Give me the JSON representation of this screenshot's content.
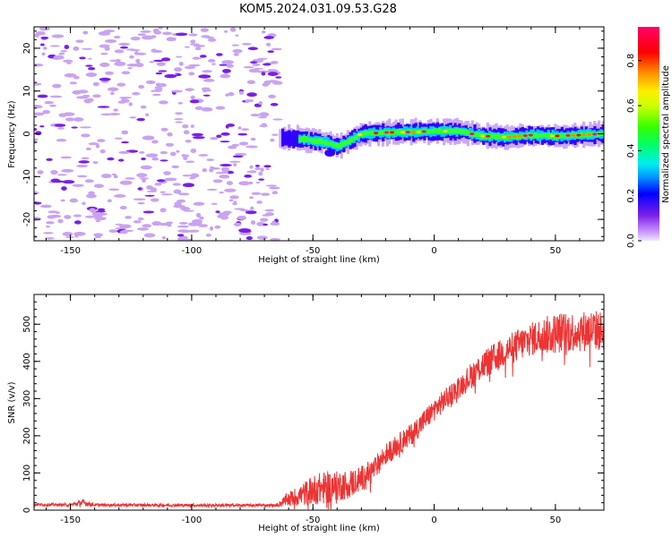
{
  "title": "KOM5.2024.031.09.53.G28",
  "colors": {
    "snr_line": "#ee3333",
    "speckle_light": "#c9a3f0",
    "speckle_dark": "#7a1fe8"
  },
  "chart_data": [
    {
      "type": "heatmap",
      "title": "KOM5.2024.031.09.53.G28",
      "xlabel": "Height of straight line (km)",
      "ylabel": "Frequency (Hz)",
      "xlim": [
        -165,
        70
      ],
      "ylim": [
        -25,
        25
      ],
      "xticks": [
        -150,
        -100,
        -50,
        0,
        50
      ],
      "yticks": [
        -20,
        -10,
        0,
        10,
        20
      ],
      "colorbar": {
        "label": "Normalized spectral amplitude",
        "range": [
          0,
          0.95
        ],
        "ticks": [
          0.0,
          0.2,
          0.4,
          0.6,
          0.8
        ],
        "colormap": "gist_rainbow_r"
      },
      "noise_region_x": [
        -165,
        -64
      ],
      "signal_trace": {
        "x": [
          -64,
          -55,
          -45,
          -40,
          -35,
          -30,
          -20,
          -10,
          0,
          10,
          20,
          30,
          40,
          50,
          60,
          70
        ],
        "freq": [
          -1,
          -1.2,
          -2,
          -3,
          -1.5,
          0,
          0.3,
          0.4,
          0.6,
          0.6,
          -0.5,
          -0.8,
          -0.3,
          -0.5,
          -0.3,
          0
        ]
      },
      "grid": false
    },
    {
      "type": "line",
      "xlabel": "Height of straight line (km)",
      "ylabel": "SNR (v/v)",
      "xlim": [
        -165,
        70
      ],
      "ylim": [
        0,
        580
      ],
      "xticks": [
        -150,
        -100,
        -50,
        0,
        50
      ],
      "yticks": [
        0,
        100,
        200,
        300,
        400,
        500
      ],
      "series": [
        {
          "x": [
            -165,
            -150,
            -145,
            -140,
            -100,
            -65,
            -60,
            -55,
            -50,
            -45,
            -40,
            -35,
            -30,
            -25,
            -20,
            -15,
            -10,
            -5,
            0,
            5,
            10,
            15,
            20,
            25,
            30,
            35,
            40,
            45,
            50,
            55,
            60,
            65,
            70
          ],
          "values": [
            15,
            14,
            20,
            14,
            13,
            13,
            30,
            40,
            55,
            60,
            65,
            70,
            85,
            110,
            150,
            175,
            200,
            235,
            270,
            300,
            330,
            360,
            390,
            410,
            430,
            445,
            460,
            470,
            475,
            480,
            480,
            485,
            480
          ],
          "spread": [
            4,
            4,
            10,
            4,
            4,
            4,
            20,
            30,
            40,
            45,
            40,
            40,
            35,
            30,
            30,
            30,
            30,
            30,
            30,
            30,
            30,
            35,
            40,
            40,
            40,
            45,
            45,
            50,
            55,
            55,
            55,
            55,
            55
          ]
        }
      ],
      "grid": false
    }
  ]
}
